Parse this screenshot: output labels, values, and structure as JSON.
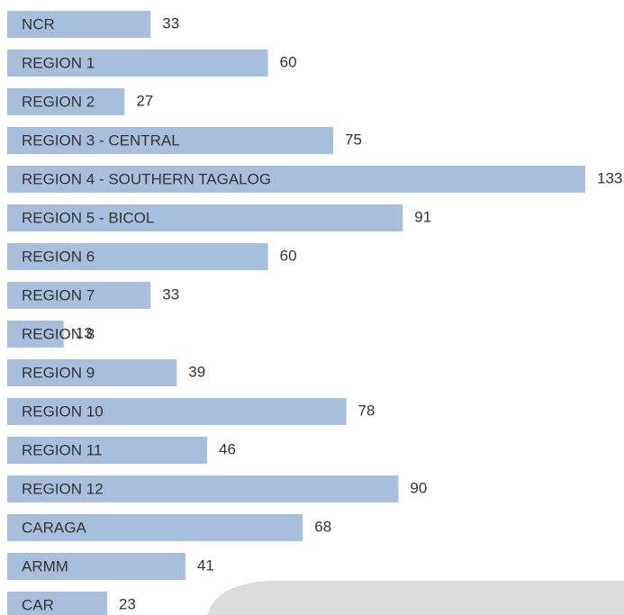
{
  "chart_data": {
    "type": "bar",
    "orientation": "horizontal",
    "categories": [
      "NCR",
      "REGION 1",
      "REGION 2",
      "REGION 3 - CENTRAL",
      "REGION 4 - SOUTHERN TAGALOG",
      "REGION 5 - BICOL",
      "REGION 6",
      "REGION 7",
      "REGION 8",
      "REGION 9",
      "REGION 10",
      "REGION 11",
      "REGION 12",
      "CARAGA",
      "ARMM",
      "CAR"
    ],
    "values": [
      33,
      60,
      27,
      75,
      133,
      91,
      60,
      33,
      13,
      39,
      78,
      46,
      90,
      68,
      41,
      23
    ],
    "color": "#a7bfdc"
  }
}
